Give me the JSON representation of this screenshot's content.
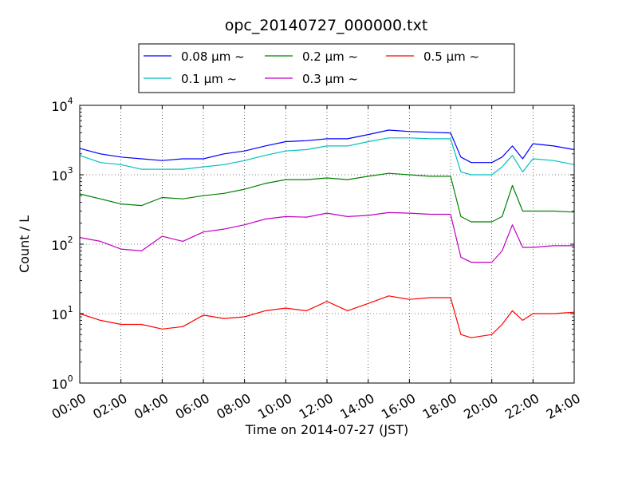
{
  "chart_data": {
    "type": "line",
    "title": "opc_20140727_000000.txt",
    "xlabel": "Time on 2014-07-27 (JST)",
    "ylabel": "Count / L",
    "x_scale": "time",
    "xlim": [
      "00:00",
      "24:00"
    ],
    "x_ticks": [
      "00:00",
      "02:00",
      "04:00",
      "06:00",
      "08:00",
      "10:00",
      "12:00",
      "14:00",
      "16:00",
      "18:00",
      "20:00",
      "22:00",
      "24:00"
    ],
    "y_scale": "log",
    "ylim": [
      1,
      10000
    ],
    "y_ticks": [
      {
        "base": "10",
        "exp": "0"
      },
      {
        "base": "10",
        "exp": "1"
      },
      {
        "base": "10",
        "exp": "2"
      },
      {
        "base": "10",
        "exp": "3"
      },
      {
        "base": "10",
        "exp": "4"
      }
    ],
    "grid": true,
    "legend_position": "top-center",
    "series": [
      {
        "name": "0.08 μm ~",
        "color": "#0000ff",
        "x": [
          "00:00",
          "01:00",
          "02:00",
          "03:00",
          "04:00",
          "05:00",
          "06:00",
          "07:00",
          "08:00",
          "09:00",
          "10:00",
          "11:00",
          "12:00",
          "13:00",
          "14:00",
          "15:00",
          "16:00",
          "17:00",
          "18:00",
          "18:30",
          "19:00",
          "20:00",
          "20:30",
          "21:00",
          "21:30",
          "22:00",
          "23:00",
          "24:00"
        ],
        "y": [
          2400,
          2000,
          1800,
          1700,
          1600,
          1700,
          1700,
          2000,
          2200,
          2600,
          3000,
          3100,
          3300,
          3300,
          3800,
          4400,
          4200,
          4100,
          4000,
          1800,
          1500,
          1500,
          1800,
          2600,
          1700,
          2800,
          2600,
          2300
        ]
      },
      {
        "name": "0.1 μm ~",
        "color": "#00bfbf",
        "x": [
          "00:00",
          "01:00",
          "02:00",
          "03:00",
          "04:00",
          "05:00",
          "06:00",
          "07:00",
          "08:00",
          "09:00",
          "10:00",
          "11:00",
          "12:00",
          "13:00",
          "14:00",
          "15:00",
          "16:00",
          "17:00",
          "18:00",
          "18:30",
          "19:00",
          "20:00",
          "20:30",
          "21:00",
          "21:30",
          "22:00",
          "23:00",
          "24:00"
        ],
        "y": [
          1900,
          1500,
          1400,
          1200,
          1200,
          1200,
          1300,
          1400,
          1600,
          1900,
          2200,
          2300,
          2600,
          2600,
          3000,
          3400,
          3400,
          3300,
          3300,
          1100,
          1000,
          1000,
          1300,
          1900,
          1100,
          1700,
          1600,
          1400
        ]
      },
      {
        "name": "0.2 μm ~",
        "color": "#008000",
        "x": [
          "00:00",
          "01:00",
          "02:00",
          "03:00",
          "04:00",
          "05:00",
          "06:00",
          "07:00",
          "08:00",
          "09:00",
          "10:00",
          "11:00",
          "12:00",
          "13:00",
          "14:00",
          "15:00",
          "16:00",
          "17:00",
          "18:00",
          "18:30",
          "19:00",
          "20:00",
          "20:30",
          "21:00",
          "21:30",
          "22:00",
          "23:00",
          "24:00"
        ],
        "y": [
          530,
          450,
          380,
          360,
          470,
          450,
          500,
          540,
          620,
          750,
          850,
          850,
          900,
          850,
          950,
          1050,
          1000,
          950,
          950,
          250,
          210,
          210,
          250,
          700,
          300,
          300,
          300,
          290
        ]
      },
      {
        "name": "0.3 μm ~",
        "color": "#bf00bf",
        "x": [
          "00:00",
          "01:00",
          "02:00",
          "03:00",
          "04:00",
          "05:00",
          "06:00",
          "07:00",
          "08:00",
          "09:00",
          "10:00",
          "11:00",
          "12:00",
          "13:00",
          "14:00",
          "15:00",
          "16:00",
          "17:00",
          "18:00",
          "18:30",
          "19:00",
          "20:00",
          "20:30",
          "21:00",
          "21:30",
          "22:00",
          "23:00",
          "24:00"
        ],
        "y": [
          125,
          110,
          85,
          80,
          130,
          110,
          150,
          165,
          190,
          230,
          250,
          245,
          280,
          250,
          260,
          285,
          280,
          270,
          270,
          65,
          55,
          55,
          80,
          190,
          90,
          90,
          95,
          95
        ]
      },
      {
        "name": "0.5 μm ~",
        "color": "#ff0000",
        "x": [
          "00:00",
          "01:00",
          "02:00",
          "03:00",
          "04:00",
          "05:00",
          "06:00",
          "07:00",
          "08:00",
          "09:00",
          "10:00",
          "11:00",
          "12:00",
          "13:00",
          "14:00",
          "15:00",
          "16:00",
          "17:00",
          "18:00",
          "18:30",
          "19:00",
          "20:00",
          "20:30",
          "21:00",
          "21:30",
          "22:00",
          "23:00",
          "24:00"
        ],
        "y": [
          10,
          8,
          7,
          7,
          6,
          6.5,
          9.5,
          8.5,
          9,
          11,
          12,
          11,
          15,
          11,
          14,
          18,
          16,
          17,
          17,
          5,
          4.5,
          5,
          7,
          11,
          8,
          10,
          10,
          10.5
        ]
      }
    ]
  }
}
